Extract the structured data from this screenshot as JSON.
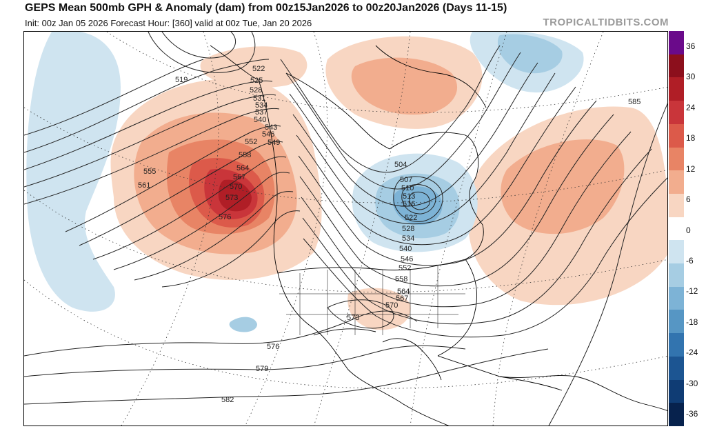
{
  "header": {
    "title": "GEPS Mean 500mb GPH & Anomaly (dam) from 00z15Jan2026 to 00z20Jan2026 (Days 11-15)",
    "subtitle": "Init: 00z Jan 05 2026   Forecast Hour: [360]   valid at 00z Tue, Jan 20 2026",
    "brand": "TROPICALTIDBITS.COM"
  },
  "colorbar": {
    "labels": [
      "36",
      "30",
      "24",
      "18",
      "12",
      "6",
      "0",
      "-6",
      "-12",
      "-18",
      "-24",
      "-30",
      "-36"
    ],
    "colors": [
      "#6a0a8a",
      "#8c0f1c",
      "#b01e26",
      "#c9353a",
      "#dc5a4a",
      "#e88465",
      "#f2ad8e",
      "#f8d6c2",
      "#ffffff",
      "#cfe4f0",
      "#a6cde3",
      "#7db3d6",
      "#5696c4",
      "#3274af",
      "#1c5592",
      "#0f3c74",
      "#07224d"
    ]
  },
  "contour_labels": [
    {
      "name": "519",
      "text": "519"
    },
    {
      "name": "522",
      "text": "522"
    },
    {
      "name": "525",
      "text": "525"
    },
    {
      "name": "528",
      "text": "528"
    },
    {
      "name": "531",
      "text": "531"
    },
    {
      "name": "534",
      "text": "534"
    },
    {
      "name": "537",
      "text": "537"
    },
    {
      "name": "540",
      "text": "540"
    },
    {
      "name": "543",
      "text": "543"
    },
    {
      "name": "546",
      "text": "546"
    },
    {
      "name": "549",
      "text": "549"
    },
    {
      "name": "552",
      "text": "552"
    },
    {
      "name": "555",
      "text": "555"
    },
    {
      "name": "558",
      "text": "558"
    },
    {
      "name": "561",
      "text": "561"
    },
    {
      "name": "564",
      "text": "564"
    },
    {
      "name": "567",
      "text": "567"
    },
    {
      "name": "570",
      "text": "570"
    },
    {
      "name": "573",
      "text": "573"
    },
    {
      "name": "576",
      "text": "576"
    },
    {
      "name": "504",
      "text": "504"
    },
    {
      "name": "507",
      "text": "507"
    },
    {
      "name": "510",
      "text": "510"
    },
    {
      "name": "513",
      "text": "513"
    },
    {
      "name": "516",
      "text": "516"
    },
    {
      "name": "522-low",
      "text": "522"
    },
    {
      "name": "528-low",
      "text": "528"
    },
    {
      "name": "534-low",
      "text": "534"
    },
    {
      "name": "540-low",
      "text": "540"
    },
    {
      "name": "546-low",
      "text": "546"
    },
    {
      "name": "552-low",
      "text": "552"
    },
    {
      "name": "558-low",
      "text": "558"
    },
    {
      "name": "564-low",
      "text": "564"
    },
    {
      "name": "567-low",
      "text": "567"
    },
    {
      "name": "570-gulf",
      "text": "570"
    },
    {
      "name": "573-gulf",
      "text": "573"
    },
    {
      "name": "576-south",
      "text": "576"
    },
    {
      "name": "579-south",
      "text": "579"
    },
    {
      "name": "582-south",
      "text": "582"
    },
    {
      "name": "585-atlantic",
      "text": "585"
    }
  ]
}
